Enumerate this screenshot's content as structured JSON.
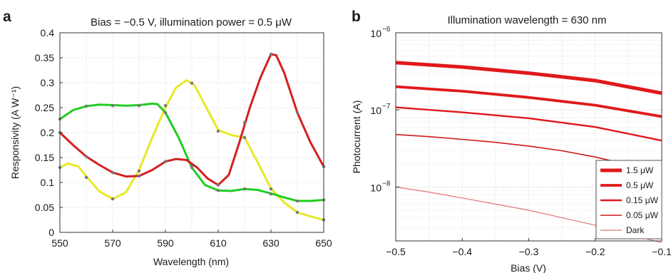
{
  "chart_data": [
    {
      "type": "line",
      "panel": "a",
      "title": "Bias = −0.5 V, illumination power = 0.5 μW",
      "xlabel": "Wavelength (nm)",
      "ylabel": "Responsivity (A W⁻¹)",
      "xlim": [
        550,
        650
      ],
      "ylim": [
        0,
        0.4
      ],
      "xticks": [
        550,
        570,
        590,
        610,
        630,
        650
      ],
      "xtick_labels": [
        "550",
        "570",
        "590",
        "610",
        "630",
        "650"
      ],
      "yticks": [
        0,
        0.05,
        0.1,
        0.15,
        0.2,
        0.25,
        0.3,
        0.35,
        0.4
      ],
      "ytick_labels": [
        "0",
        "0.05",
        "0.1",
        "0.15",
        "0.2",
        "0.25",
        "0.3",
        "0.35",
        "0.4"
      ],
      "grid": true,
      "series": [
        {
          "color": "#e8e828",
          "curve": [
            [
              550,
              0.13
            ],
            [
              553,
              0.138
            ],
            [
              557,
              0.132
            ],
            [
              560,
              0.112
            ],
            [
              565,
              0.082
            ],
            [
              570,
              0.067
            ],
            [
              575,
              0.08
            ],
            [
              580,
              0.125
            ],
            [
              585,
              0.19
            ],
            [
              590,
              0.25
            ],
            [
              594,
              0.29
            ],
            [
              598,
              0.305
            ],
            [
              601,
              0.295
            ],
            [
              605,
              0.255
            ],
            [
              610,
              0.205
            ],
            [
              615,
              0.195
            ],
            [
              620,
              0.19
            ],
            [
              625,
              0.14
            ],
            [
              630,
              0.088
            ],
            [
              635,
              0.06
            ],
            [
              640,
              0.04
            ],
            [
              645,
              0.032
            ],
            [
              650,
              0.025
            ]
          ],
          "markers": [
            [
              550,
              0.13
            ],
            [
              560,
              0.11
            ],
            [
              570,
              0.067
            ],
            [
              580,
              0.123
            ],
            [
              590,
              0.254
            ],
            [
              600,
              0.299
            ],
            [
              610,
              0.203
            ],
            [
              620,
              0.19
            ],
            [
              630,
              0.087
            ],
            [
              640,
              0.04
            ],
            [
              650,
              0.025
            ]
          ]
        },
        {
          "color": "#22cc22",
          "curve": [
            [
              550,
              0.227
            ],
            [
              555,
              0.245
            ],
            [
              560,
              0.253
            ],
            [
              565,
              0.256
            ],
            [
              570,
              0.255
            ],
            [
              575,
              0.254
            ],
            [
              580,
              0.255
            ],
            [
              585,
              0.258
            ],
            [
              587,
              0.257
            ],
            [
              590,
              0.24
            ],
            [
              595,
              0.19
            ],
            [
              600,
              0.13
            ],
            [
              605,
              0.095
            ],
            [
              610,
              0.084
            ],
            [
              615,
              0.083
            ],
            [
              620,
              0.087
            ],
            [
              625,
              0.085
            ],
            [
              630,
              0.078
            ],
            [
              635,
              0.07
            ],
            [
              640,
              0.063
            ],
            [
              645,
              0.063
            ],
            [
              650,
              0.065
            ]
          ],
          "markers": [
            [
              550,
              0.227
            ],
            [
              560,
              0.253
            ],
            [
              570,
              0.254
            ],
            [
              580,
              0.254
            ],
            [
              590,
              0.24
            ],
            [
              600,
              0.13
            ],
            [
              610,
              0.084
            ],
            [
              620,
              0.087
            ],
            [
              630,
              0.077
            ],
            [
              640,
              0.063
            ],
            [
              650,
              0.065
            ]
          ]
        },
        {
          "color": "#d42020",
          "curve": [
            [
              550,
              0.2
            ],
            [
              555,
              0.175
            ],
            [
              560,
              0.152
            ],
            [
              565,
              0.135
            ],
            [
              570,
              0.12
            ],
            [
              575,
              0.112
            ],
            [
              580,
              0.113
            ],
            [
              585,
              0.125
            ],
            [
              590,
              0.142
            ],
            [
              594,
              0.147
            ],
            [
              598,
              0.145
            ],
            [
              602,
              0.13
            ],
            [
              606,
              0.108
            ],
            [
              610,
              0.095
            ],
            [
              614,
              0.115
            ],
            [
              618,
              0.18
            ],
            [
              622,
              0.25
            ],
            [
              626,
              0.31
            ],
            [
              630,
              0.357
            ],
            [
              632,
              0.355
            ],
            [
              635,
              0.32
            ],
            [
              640,
              0.24
            ],
            [
              645,
              0.18
            ],
            [
              650,
              0.132
            ]
          ],
          "markers": [
            [
              550,
              0.2
            ],
            [
              560,
              0.152
            ],
            [
              570,
              0.12
            ],
            [
              580,
              0.113
            ],
            [
              590,
              0.142
            ],
            [
              600,
              0.132
            ],
            [
              610,
              0.095
            ],
            [
              620,
              0.22
            ],
            [
              630,
              0.357
            ],
            [
              640,
              0.24
            ],
            [
              650,
              0.132
            ]
          ]
        }
      ]
    },
    {
      "type": "line",
      "panel": "b",
      "title": "Illumination wavelength = 630 nm",
      "xlabel": "Bias (V)",
      "ylabel": "Photocurrent (A)",
      "xlim": [
        -0.5,
        -0.1
      ],
      "yscale": "log",
      "ylim": [
        2e-09,
        1e-06
      ],
      "xticks": [
        -0.5,
        -0.4,
        -0.3,
        -0.2,
        -0.1
      ],
      "xtick_labels": [
        "−0.5",
        "−0.4",
        "−0.3",
        "−0.2",
        "−0.1"
      ],
      "ytick_labels": [
        {
          "base": "10",
          "exp": "−6",
          "value": 1e-06
        },
        {
          "base": "10",
          "exp": "−7",
          "value": 1e-07
        },
        {
          "base": "10",
          "exp": "−8",
          "value": 1e-08
        }
      ],
      "grid": true,
      "legend_position": "bottom-right",
      "series": [
        {
          "name": "1.5 μW",
          "color": "#e0191b",
          "width": 5,
          "points": [
            [
              -0.5,
              4.1e-07
            ],
            [
              -0.4,
              3.6e-07
            ],
            [
              -0.3,
              3e-07
            ],
            [
              -0.2,
              2.4e-07
            ],
            [
              -0.1,
              1.65e-07
            ]
          ]
        },
        {
          "name": "0.5 μW",
          "color": "#e0191b",
          "width": 3.8,
          "points": [
            [
              -0.5,
              2e-07
            ],
            [
              -0.4,
              1.75e-07
            ],
            [
              -0.3,
              1.45e-07
            ],
            [
              -0.2,
              1.15e-07
            ],
            [
              -0.1,
              8.2e-08
            ]
          ]
        },
        {
          "name": "0.15 μW",
          "color": "#e0191b",
          "width": 2.4,
          "points": [
            [
              -0.5,
              1.08e-07
            ],
            [
              -0.4,
              9.3e-08
            ],
            [
              -0.3,
              7.8e-08
            ],
            [
              -0.2,
              6e-08
            ],
            [
              -0.1,
              4e-08
            ]
          ]
        },
        {
          "name": "0.05 μW",
          "color": "#cc1a1a",
          "width": 1.6,
          "points": [
            [
              -0.5,
              4.8e-08
            ],
            [
              -0.45,
              4.5e-08
            ],
            [
              -0.4,
              4.15e-08
            ],
            [
              -0.35,
              3.8e-08
            ],
            [
              -0.3,
              3.4e-08
            ],
            [
              -0.25,
              2.95e-08
            ],
            [
              -0.2,
              2.45e-08
            ],
            [
              -0.15,
              1.95e-08
            ],
            [
              -0.1,
              1.4e-08
            ]
          ]
        },
        {
          "name": "Dark",
          "color": "#e57373",
          "width": 1.2,
          "points": [
            [
              -0.5,
              1e-08
            ],
            [
              -0.45,
              8.6e-09
            ],
            [
              -0.4,
              7.2e-09
            ],
            [
              -0.35,
              6e-09
            ],
            [
              -0.3,
              5e-09
            ],
            [
              -0.25,
              4e-09
            ],
            [
              -0.2,
              3.2e-09
            ],
            [
              -0.16,
              2.6e-09
            ],
            [
              -0.12,
              2.1e-09
            ],
            [
              -0.1,
              1.9e-09
            ]
          ]
        }
      ]
    }
  ]
}
